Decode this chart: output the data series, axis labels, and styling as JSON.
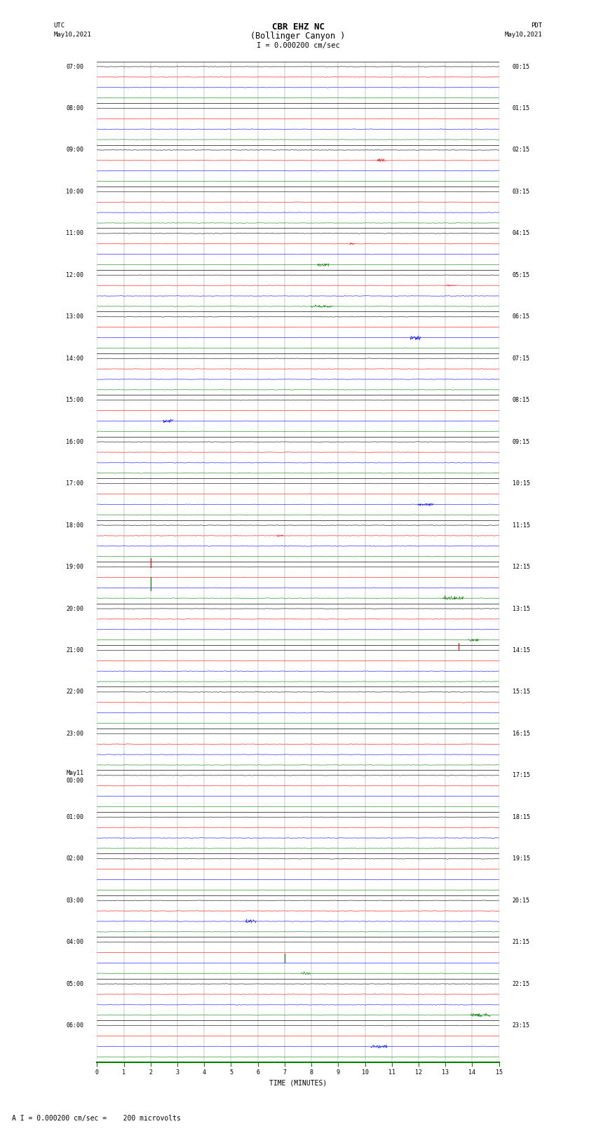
{
  "title_line1": "CBR EHZ NC",
  "title_line2": "(Bollinger Canyon )",
  "scale_text": "I = 0.000200 cm/sec",
  "left_label": "UTC",
  "left_date": "May10,2021",
  "right_label": "PDT",
  "right_date": "May10,2021",
  "xlabel": "TIME (MINUTES)",
  "bottom_note": "A I = 0.000200 cm/sec =    200 microvolts",
  "utc_labels": [
    "07:00",
    "08:00",
    "09:00",
    "10:00",
    "11:00",
    "12:00",
    "13:00",
    "14:00",
    "15:00",
    "16:00",
    "17:00",
    "18:00",
    "19:00",
    "20:00",
    "21:00",
    "22:00",
    "23:00",
    "May11\n00:00",
    "01:00",
    "02:00",
    "03:00",
    "04:00",
    "05:00",
    "06:00"
  ],
  "pdt_labels": [
    "00:15",
    "01:15",
    "02:15",
    "03:15",
    "04:15",
    "05:15",
    "06:15",
    "07:15",
    "08:15",
    "09:15",
    "10:15",
    "11:15",
    "12:15",
    "13:15",
    "14:15",
    "15:15",
    "16:15",
    "17:15",
    "18:15",
    "19:15",
    "20:15",
    "21:15",
    "22:15",
    "23:15"
  ],
  "n_hours": 24,
  "traces_per_hour": 4,
  "colors": [
    "black",
    "red",
    "blue",
    "green"
  ],
  "bg_color": "white",
  "xmin": 0,
  "xmax": 15,
  "fig_width": 8.5,
  "fig_height": 16.13,
  "dpi": 100,
  "noise_base": 0.06,
  "noise_medium_rows": [
    40,
    41,
    42,
    43
  ],
  "noise_medium": 0.12,
  "noise_high_rows": [
    44,
    45,
    46,
    47
  ],
  "noise_high": 0.18,
  "title_fontsize": 9,
  "tick_fontsize": 6,
  "note_fontsize": 7,
  "label_fontsize": 7,
  "scale_fontsize": 7.5,
  "trace_lw": 0.4,
  "grid_lw": 0.3,
  "hour_line_lw": 0.6
}
